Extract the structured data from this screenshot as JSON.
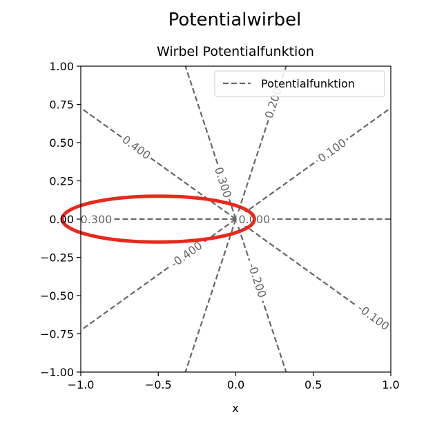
{
  "figure": {
    "suptitle": "Potentialwirbel"
  },
  "chart_data": {
    "type": "line",
    "title": "Wirbel Potentialfunktion",
    "xlabel": "x",
    "ylabel": "",
    "xlim": [
      -1.0,
      1.0
    ],
    "ylim": [
      -1.0,
      1.0
    ],
    "xticks": [
      -1.0,
      -0.5,
      0.0,
      0.5,
      1.0
    ],
    "xtick_labels": [
      "−1.0",
      "−0.5",
      "0.0",
      "0.5",
      "1.0"
    ],
    "yticks": [
      -1.0,
      -0.75,
      -0.5,
      -0.25,
      0.0,
      0.25,
      0.5,
      0.75,
      1.0
    ],
    "ytick_labels": [
      "−1.00",
      "−0.75",
      "−0.50",
      "−0.25",
      "0.00",
      "0.25",
      "0.50",
      "0.75",
      "1.00"
    ],
    "grid": false,
    "legend": {
      "placement": "top-right",
      "entries": [
        "Potentialfunktion"
      ]
    },
    "series": [
      {
        "name": "Potentialfunktion",
        "style": "dashed",
        "color": "#666666",
        "lines": [
          {
            "from": [
              0,
              0
            ],
            "to": [
              1.0,
              0.0
            ]
          },
          {
            "from": [
              0,
              0
            ],
            "to": [
              1.0,
              0.727
            ]
          },
          {
            "from": [
              0,
              0
            ],
            "to": [
              0.325,
              1.0
            ]
          },
          {
            "from": [
              0,
              0
            ],
            "to": [
              -0.325,
              1.0
            ]
          },
          {
            "from": [
              0,
              0
            ],
            "to": [
              -1.0,
              0.727
            ]
          },
          {
            "from": [
              0,
              0
            ],
            "to": [
              -1.0,
              0.0
            ]
          },
          {
            "from": [
              0,
              0
            ],
            "to": [
              -1.0,
              -0.727
            ]
          },
          {
            "from": [
              0,
              0
            ],
            "to": [
              -0.325,
              -1.0
            ]
          },
          {
            "from": [
              0,
              0
            ],
            "to": [
              0.325,
              -1.0
            ]
          },
          {
            "from": [
              0,
              0
            ],
            "to": [
              1.0,
              -0.727
            ]
          }
        ]
      }
    ],
    "contour_labels": [
      {
        "text": "0.000",
        "x": 0.12,
        "y": 0.0,
        "angle": 0
      },
      {
        "text": "0.100",
        "x": 0.62,
        "y": 0.45,
        "angle": -36
      },
      {
        "text": "0.200",
        "x": 0.24,
        "y": 0.76,
        "angle": -72
      },
      {
        "text": "0.300",
        "x": -0.08,
        "y": 0.24,
        "angle": 72
      },
      {
        "text": "0.400",
        "x": -0.64,
        "y": 0.47,
        "angle": 36
      },
      {
        "text": "0.300",
        "x": -0.9,
        "y": 0.0,
        "angle": 0
      },
      {
        "text": "-0.400",
        "x": -0.32,
        "y": -0.23,
        "angle": -36
      },
      {
        "text": "-0.200",
        "x": 0.14,
        "y": -0.4,
        "angle": 72
      },
      {
        "text": "-0.100",
        "x": 0.89,
        "y": -0.64,
        "angle": 36
      }
    ],
    "annotations": [
      {
        "type": "ellipse",
        "color": "#e8291c",
        "cx": -0.5,
        "cy": 0.0,
        "rx": 0.62,
        "ry": 0.15
      }
    ]
  }
}
